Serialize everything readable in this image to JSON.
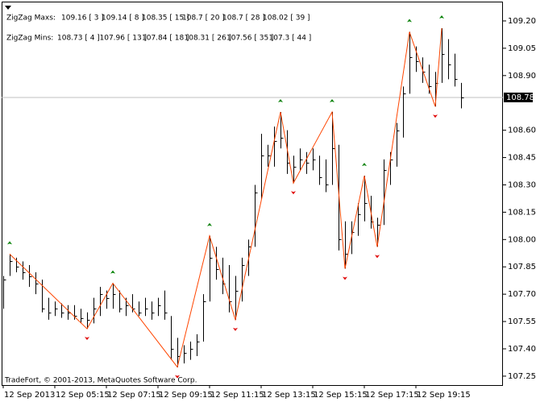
{
  "chart_data": {
    "type": "ohlc",
    "header": [
      {
        "label": "ZigZag Maxs:",
        "items": [
          "109.16 [ 3 ]",
          "109.14 [ 8 ]",
          "108.35 [ 15 ]",
          "108.7 [ 20 ]",
          "108.7 [ 28 ]",
          "108.02 [ 39 ]"
        ]
      },
      {
        "label": "ZigZag Mins:",
        "items": [
          "108.73 [ 4 ]",
          "107.96 [ 13 ]",
          "107.84 [ 18 ]",
          "108.31 [ 26 ]",
          "107.56 [ 35 ]",
          "107.3 [ 44 ]"
        ]
      }
    ],
    "footer": "TradeFort, © 2001-2013, MetaQuotes Software Corp.",
    "high": [
      107.8,
      107.92,
      107.9,
      107.88,
      107.86,
      107.82,
      107.78,
      107.68,
      107.66,
      107.65,
      107.64,
      107.64,
      107.62,
      107.6,
      107.68,
      107.74,
      107.72,
      107.76,
      107.72,
      107.68,
      107.7,
      107.66,
      107.68,
      107.66,
      107.68,
      107.72,
      107.58,
      107.46,
      107.42,
      107.44,
      107.48,
      107.7,
      108.02,
      107.96,
      107.9,
      107.86,
      107.8,
      107.9,
      108.0,
      108.3,
      108.58,
      108.52,
      108.62,
      108.7,
      108.6,
      108.46,
      108.5,
      108.48,
      108.5,
      108.46,
      108.44,
      108.7,
      108.52,
      108.1,
      108.1,
      108.2,
      108.35,
      108.24,
      108.12,
      108.44,
      108.48,
      108.64,
      108.84,
      109.14,
      109.06,
      109.0,
      108.96,
      108.92,
      109.16,
      109.1,
      109.02,
      108.86
    ],
    "low": [
      107.62,
      107.8,
      107.82,
      107.78,
      107.74,
      107.7,
      107.6,
      107.56,
      107.58,
      107.57,
      107.56,
      107.56,
      107.54,
      107.51,
      107.54,
      107.58,
      107.62,
      107.62,
      107.6,
      107.58,
      107.6,
      107.58,
      107.58,
      107.56,
      107.58,
      107.56,
      107.34,
      107.3,
      107.32,
      107.34,
      107.36,
      107.44,
      107.66,
      107.78,
      107.7,
      107.6,
      107.56,
      107.66,
      107.8,
      107.96,
      108.22,
      108.4,
      108.4,
      108.5,
      108.36,
      108.31,
      108.38,
      108.36,
      108.38,
      108.3,
      108.26,
      108.3,
      107.94,
      107.84,
      107.92,
      108.02,
      108.1,
      108.06,
      107.96,
      108.08,
      108.3,
      108.4,
      108.56,
      108.8,
      108.92,
      108.86,
      108.8,
      108.73,
      108.86,
      108.88,
      108.84,
      108.72
    ],
    "close": [
      107.78,
      107.88,
      107.85,
      107.82,
      107.8,
      107.76,
      107.62,
      107.6,
      107.62,
      107.6,
      107.6,
      107.58,
      107.57,
      107.56,
      107.62,
      107.7,
      107.68,
      107.7,
      107.62,
      107.64,
      107.62,
      107.6,
      107.62,
      107.6,
      107.64,
      107.6,
      107.4,
      107.36,
      107.38,
      107.4,
      107.44,
      107.66,
      107.9,
      107.84,
      107.76,
      107.66,
      107.72,
      107.86,
      107.96,
      108.26,
      108.46,
      108.46,
      108.54,
      108.56,
      108.42,
      108.4,
      108.44,
      108.42,
      108.44,
      108.34,
      108.3,
      108.5,
      108.0,
      107.92,
      108.04,
      108.14,
      108.2,
      108.1,
      108.08,
      108.38,
      108.44,
      108.6,
      108.8,
      109.0,
      108.98,
      108.92,
      108.84,
      108.86,
      109.02,
      108.96,
      108.88,
      108.78
    ],
    "zigzag": {
      "color": "#ff4500",
      "x": [
        1,
        13,
        17,
        27,
        32,
        36,
        43,
        45,
        51,
        53,
        56,
        58,
        63,
        67,
        68
      ],
      "values": [
        107.92,
        107.51,
        107.76,
        107.3,
        108.02,
        107.56,
        108.7,
        108.31,
        108.7,
        107.84,
        108.35,
        107.96,
        109.14,
        108.73,
        109.16
      ]
    },
    "current_price": 108.78,
    "xlim": [
      -0.25,
      77.5
    ],
    "xticks": [
      {
        "value": 0,
        "label": "12 Sep 2013"
      },
      {
        "value": 8,
        "label": "12 Sep 05:15"
      },
      {
        "value": 16,
        "label": "12 Sep 07:15"
      },
      {
        "value": 24,
        "label": "12 Sep 09:15"
      },
      {
        "value": 32,
        "label": "12 Sep 11:15"
      },
      {
        "value": 40,
        "label": "12 Sep 13:15"
      },
      {
        "value": 48,
        "label": "12 Sep 15:15"
      },
      {
        "value": 56,
        "label": "12 Sep 17:15"
      },
      {
        "value": 64,
        "label": "12 Sep 19:15"
      }
    ],
    "ylim": [
      107.201,
      109.306
    ],
    "yticks": [
      107.25,
      {
        "value": 107.4,
        "label": "107.40"
      },
      107.55,
      {
        "value": 107.7,
        "label": "107.70"
      },
      107.85,
      {
        "value": 108,
        "label": "108.00"
      },
      108.15,
      {
        "value": 108.3,
        "label": "108.30"
      },
      108.45,
      {
        "value": 108.6,
        "label": "108.60"
      },
      {
        "value": 108.9,
        "label": "108.90"
      },
      109.05,
      {
        "value": 109.2,
        "label": "109.20"
      }
    ]
  }
}
